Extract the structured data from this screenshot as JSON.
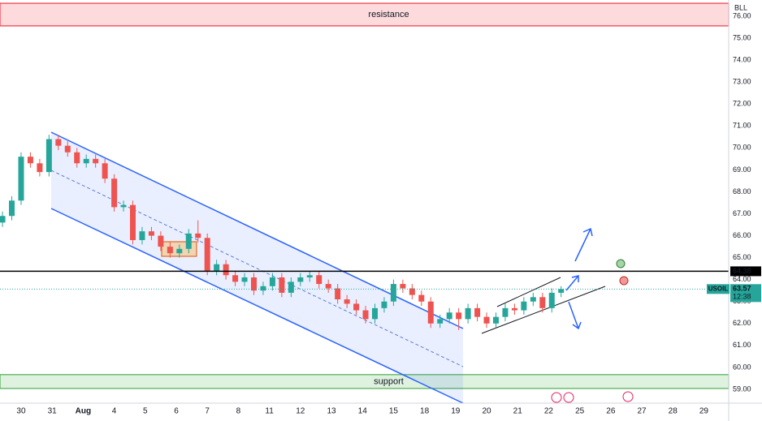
{
  "chart_data": {
    "type": "candlestick",
    "symbol_corner": "BLL",
    "x": [
      -0.6,
      -0.3,
      0,
      0.3,
      0.6,
      0.9,
      1.2,
      1.5,
      1.8,
      2.1,
      2.4,
      2.7,
      3,
      3.3,
      3.6,
      3.9,
      4.2,
      4.5,
      4.8,
      5.1,
      5.4,
      5.7,
      6,
      6.3,
      6.6,
      6.9,
      7.2,
      7.5,
      7.8,
      8.1,
      8.4,
      8.7,
      9,
      9.3,
      9.6,
      9.9,
      10.2,
      10.5,
      10.8,
      11.1,
      11.4,
      11.7,
      12,
      12.3,
      12.6,
      12.9,
      13.2,
      13.5,
      13.8,
      14.1,
      14.4,
      14.7,
      15,
      15.3,
      15.6,
      15.9,
      16.2,
      16.5,
      16.8,
      17.1,
      17.4
    ],
    "open": [
      66.6,
      66.9,
      67.6,
      69.6,
      69.3,
      68.9,
      70.4,
      70.1,
      69.8,
      69.3,
      69.5,
      69.3,
      68.6,
      67.3,
      67.4,
      65.8,
      66.2,
      66.0,
      65.5,
      65.2,
      65.4,
      66.1,
      65.9,
      64.4,
      64.7,
      64.2,
      63.9,
      64.1,
      63.5,
      63.7,
      64.1,
      63.4,
      63.9,
      64.1,
      64.2,
      63.8,
      63.6,
      63.1,
      62.9,
      62.6,
      62.2,
      62.7,
      63.0,
      63.8,
      63.6,
      63.3,
      63.0,
      62.0,
      62.2,
      62.5,
      62.2,
      62.7,
      62.3,
      62.0,
      62.3,
      62.7,
      62.6,
      63.0,
      63.2,
      62.7,
      63.4
    ],
    "high": [
      67.1,
      67.8,
      69.8,
      69.8,
      69.5,
      70.6,
      70.6,
      70.3,
      70.0,
      69.7,
      69.7,
      69.5,
      68.8,
      67.6,
      67.6,
      66.4,
      66.4,
      66.2,
      65.7,
      65.6,
      66.3,
      66.7,
      66.1,
      64.9,
      64.9,
      64.4,
      64.3,
      64.3,
      63.9,
      64.3,
      64.3,
      64.1,
      64.3,
      64.4,
      64.4,
      64.0,
      63.8,
      63.3,
      63.1,
      62.8,
      62.9,
      63.2,
      64.0,
      64.0,
      63.8,
      63.5,
      63.2,
      62.4,
      62.7,
      62.7,
      62.9,
      62.9,
      62.5,
      62.5,
      62.9,
      62.9,
      63.2,
      63.4,
      63.4,
      63.6,
      63.7
    ],
    "low": [
      66.4,
      66.7,
      67.4,
      69.1,
      68.7,
      68.7,
      69.9,
      69.6,
      69.1,
      69.1,
      69.1,
      68.4,
      67.1,
      67.1,
      65.6,
      65.6,
      65.8,
      65.3,
      65.0,
      65.0,
      65.2,
      65.7,
      64.2,
      64.2,
      64.0,
      63.7,
      63.7,
      63.3,
      63.3,
      63.5,
      63.2,
      63.2,
      63.7,
      63.9,
      63.6,
      63.4,
      62.9,
      62.7,
      62.4,
      62.0,
      62.0,
      62.5,
      62.8,
      63.4,
      63.1,
      62.8,
      61.8,
      61.8,
      62.0,
      61.7,
      62.0,
      62.1,
      61.8,
      61.8,
      62.1,
      62.4,
      62.4,
      62.8,
      62.5,
      62.5,
      63.2
    ],
    "close": [
      66.9,
      67.6,
      69.6,
      69.3,
      68.9,
      70.4,
      70.1,
      69.8,
      69.3,
      69.5,
      69.3,
      68.6,
      67.3,
      67.4,
      65.8,
      66.2,
      66.0,
      65.5,
      65.2,
      65.4,
      66.1,
      65.9,
      64.4,
      64.7,
      64.2,
      63.9,
      64.1,
      63.5,
      63.7,
      64.1,
      63.4,
      63.9,
      64.1,
      64.2,
      63.8,
      63.6,
      63.1,
      62.9,
      62.6,
      62.2,
      62.7,
      63.0,
      63.8,
      63.6,
      63.3,
      63.0,
      62.0,
      62.2,
      62.5,
      62.2,
      62.7,
      62.3,
      62.0,
      62.3,
      62.7,
      62.6,
      63.0,
      63.2,
      62.7,
      63.4,
      63.57
    ],
    "up_color": "#26a69a",
    "down_color": "#ef5350",
    "xlim": [
      -0.68,
      22.8
    ],
    "ylim": [
      58.37,
      76.74
    ],
    "xticks": [
      {
        "value": 0,
        "label": "30"
      },
      {
        "value": 1,
        "label": "31"
      },
      {
        "value": 2,
        "label": "Aug"
      },
      {
        "value": 3,
        "label": "4"
      },
      {
        "value": 4,
        "label": "5"
      },
      {
        "value": 5,
        "label": "6"
      },
      {
        "value": 6,
        "label": "7"
      },
      {
        "value": 7,
        "label": "8"
      },
      {
        "value": 8,
        "label": "11"
      },
      {
        "value": 9,
        "label": "12"
      },
      {
        "value": 10,
        "label": "13"
      },
      {
        "value": 11,
        "label": "14"
      },
      {
        "value": 12,
        "label": "15"
      },
      {
        "value": 13,
        "label": "18"
      },
      {
        "value": 14,
        "label": "19"
      },
      {
        "value": 15,
        "label": "20"
      },
      {
        "value": 16,
        "label": "21"
      },
      {
        "value": 17,
        "label": "22"
      },
      {
        "value": 18,
        "label": "25"
      },
      {
        "value": 19,
        "label": "26"
      },
      {
        "value": 20,
        "label": "27"
      },
      {
        "value": 21,
        "label": "28"
      },
      {
        "value": 22,
        "label": "29"
      }
    ],
    "yticks": [
      {
        "value": 59,
        "label": "59.00"
      },
      {
        "value": 60,
        "label": "60.00"
      },
      {
        "value": 61,
        "label": "61.00"
      },
      {
        "value": 62,
        "label": "62.00"
      },
      {
        "value": 63,
        "label": "63.00"
      },
      {
        "value": 64,
        "label": "64.00"
      },
      {
        "value": 65,
        "label": "65.00"
      },
      {
        "value": 66,
        "label": "66.00"
      },
      {
        "value": 67,
        "label": "67.00"
      },
      {
        "value": 68,
        "label": "68.00"
      },
      {
        "value": 69,
        "label": "69.00"
      },
      {
        "value": 70,
        "label": "70.00"
      },
      {
        "value": 71,
        "label": "71.00"
      },
      {
        "value": 72,
        "label": "72.00"
      },
      {
        "value": 73,
        "label": "73.00"
      },
      {
        "value": 74,
        "label": "74.00"
      },
      {
        "value": 75,
        "label": "75.00"
      },
      {
        "value": 76,
        "label": "76.00"
      }
    ],
    "grid": false,
    "zones": [
      {
        "label": "resistance",
        "range": [
          75.56,
          76.59
        ],
        "color": "#f23645"
      },
      {
        "label": "support",
        "range": [
          59.04,
          59.67
        ],
        "color": "#4caf50"
      }
    ],
    "level": {
      "value": 64.38,
      "label": "64.38"
    },
    "last_price": {
      "symbol": "USOIL",
      "value": 63.57,
      "label": "63.57",
      "countdown": "12:38"
    }
  }
}
